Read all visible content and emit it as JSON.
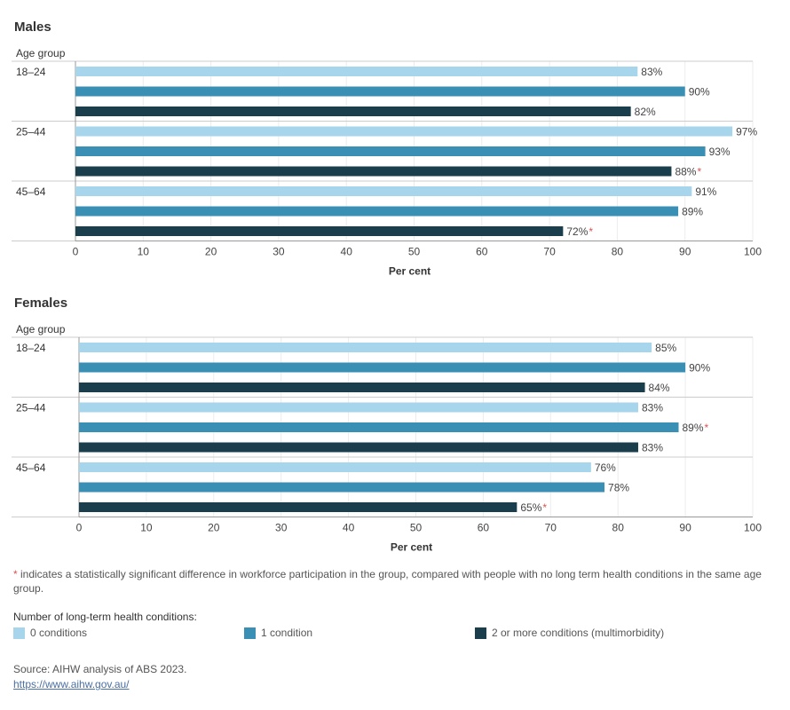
{
  "colors": {
    "conditions_0": "#a6d5ec",
    "conditions_1": "#3a8fb5",
    "conditions_2plus": "#1a3e4c",
    "significance_star": "#d9534f"
  },
  "chart_data": [
    {
      "type": "bar",
      "orientation": "horizontal",
      "title": "Males",
      "category_header": "Age group",
      "categories": [
        "18–24",
        "25–44",
        "45–64"
      ],
      "xlabel": "Per cent",
      "xlim": [
        0,
        100
      ],
      "xticks": [
        "0",
        "10",
        "20",
        "30",
        "40",
        "50",
        "60",
        "70",
        "80",
        "90",
        "100"
      ],
      "grid": true,
      "series": [
        {
          "name": "0 conditions",
          "values": [
            83,
            97,
            91
          ],
          "labels": [
            "83%",
            "97%",
            "91%"
          ],
          "significant": [
            false,
            false,
            false
          ]
        },
        {
          "name": "1 condition",
          "values": [
            90,
            93,
            89
          ],
          "labels": [
            "90%",
            "93%",
            "89%"
          ],
          "significant": [
            false,
            false,
            false
          ]
        },
        {
          "name": "2 or more conditions (multimorbidity)",
          "values": [
            82,
            88,
            72
          ],
          "labels": [
            "82%",
            "88%",
            "72%"
          ],
          "significant": [
            false,
            true,
            true
          ]
        }
      ]
    },
    {
      "type": "bar",
      "orientation": "horizontal",
      "title": "Females",
      "category_header": "Age group",
      "categories": [
        "18–24",
        "25–44",
        "45–64"
      ],
      "xlabel": "Per cent",
      "xlim": [
        0,
        100
      ],
      "xticks": [
        "0",
        "10",
        "20",
        "30",
        "40",
        "50",
        "60",
        "70",
        "80",
        "90",
        "100"
      ],
      "grid": true,
      "series": [
        {
          "name": "0 conditions",
          "values": [
            85,
            83,
            76
          ],
          "labels": [
            "85%",
            "83%",
            "76%"
          ],
          "significant": [
            false,
            false,
            false
          ]
        },
        {
          "name": "1 condition",
          "values": [
            90,
            89,
            78
          ],
          "labels": [
            "90%",
            "89%",
            "78%"
          ],
          "significant": [
            false,
            true,
            false
          ]
        },
        {
          "name": "2 or more conditions (multimorbidity)",
          "values": [
            84,
            83,
            65
          ],
          "labels": [
            "84%",
            "83%",
            "65%"
          ],
          "significant": [
            false,
            false,
            true
          ]
        }
      ]
    }
  ],
  "footnote": {
    "star": "*",
    "text": " indicates a statistically significant difference in workforce participation in the group, compared with people with no long term health conditions in the same age group."
  },
  "legend": {
    "title": "Number of long-term health conditions:",
    "items": [
      {
        "label": "0 conditions",
        "color": "#a6d5ec"
      },
      {
        "label": "1 condition",
        "color": "#3a8fb5"
      },
      {
        "label": "2 or more conditions (multimorbidity)",
        "color": "#1a3e4c"
      }
    ]
  },
  "source": {
    "text": "Source: AIHW analysis of ABS 2023.",
    "link": "https://www.aihw.gov.au/"
  }
}
